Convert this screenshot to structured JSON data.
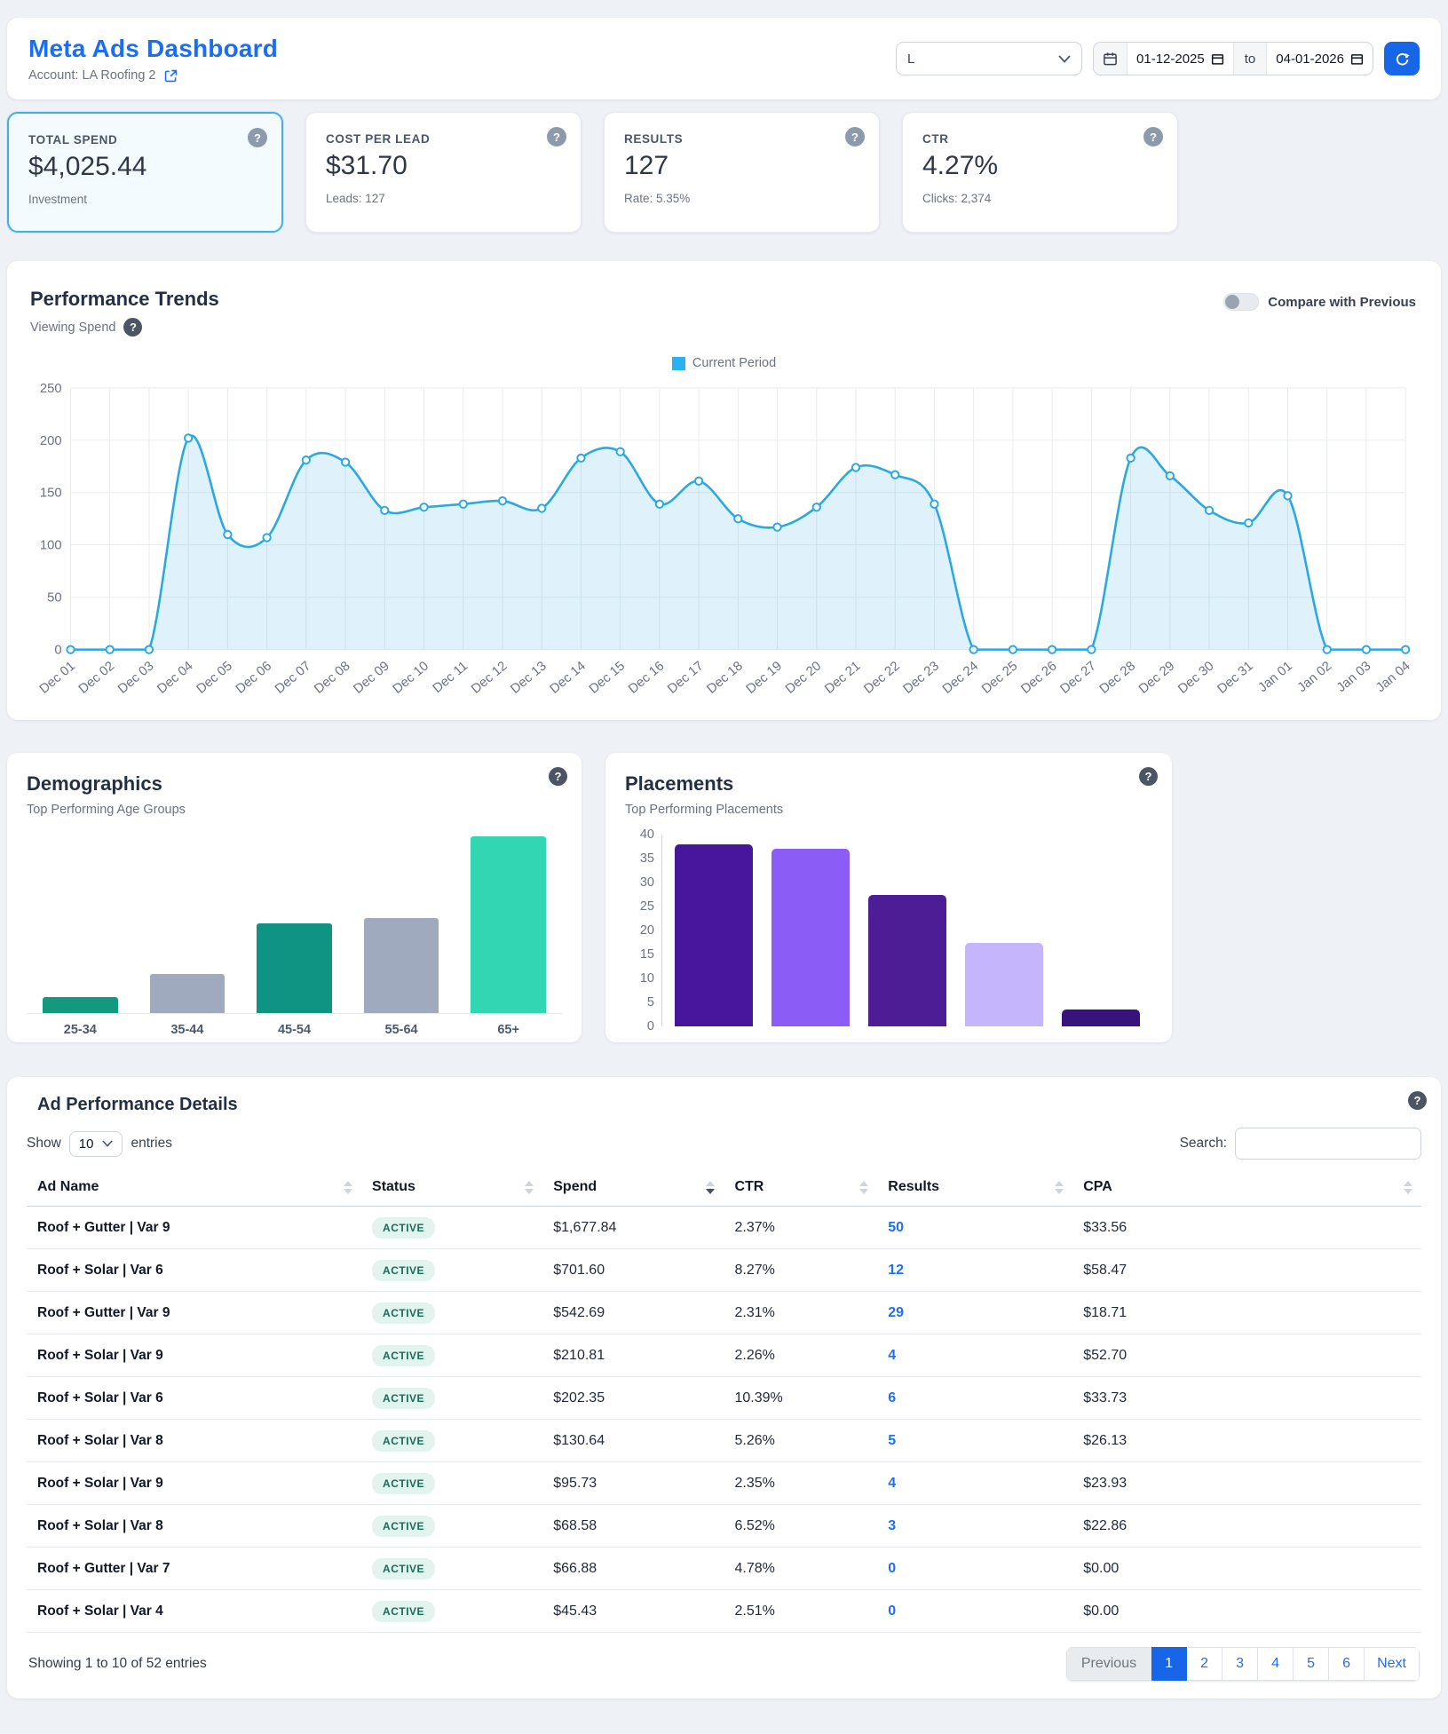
{
  "header": {
    "title": "Meta Ads Dashboard",
    "account_label": "Account: LA Roofing 2",
    "dropdown_value": "L",
    "date_from": "01-12-2025",
    "to_label": "to",
    "date_to": "04-01-2026"
  },
  "kpis": [
    {
      "label": "TOTAL SPEND",
      "value": "$4,025.44",
      "sub": "Investment"
    },
    {
      "label": "COST PER LEAD",
      "value": "$31.70",
      "sub": "Leads: 127"
    },
    {
      "label": "RESULTS",
      "value": "127",
      "sub": "Rate: 5.35%"
    },
    {
      "label": "CTR",
      "value": "4.27%",
      "sub": "Clicks: 2,374"
    }
  ],
  "trends": {
    "title": "Performance Trends",
    "subtitle": "Viewing Spend",
    "toggle_label": "Compare with Previous",
    "legend": "Current Period"
  },
  "demographics": {
    "title": "Demographics",
    "subtitle": "Top Performing Age Groups"
  },
  "placements": {
    "title": "Placements",
    "subtitle": "Top Performing Placements"
  },
  "chart_data": [
    {
      "type": "line",
      "title": "Performance Trends",
      "subtitle": "Viewing Spend",
      "legend": [
        "Current Period"
      ],
      "legend_position": "top",
      "grid": true,
      "x": [
        "Dec 01",
        "Dec 02",
        "Dec 03",
        "Dec 04",
        "Dec 05",
        "Dec 06",
        "Dec 07",
        "Dec 08",
        "Dec 09",
        "Dec 10",
        "Dec 11",
        "Dec 12",
        "Dec 13",
        "Dec 14",
        "Dec 15",
        "Dec 16",
        "Dec 17",
        "Dec 18",
        "Dec 19",
        "Dec 20",
        "Dec 21",
        "Dec 22",
        "Dec 23",
        "Dec 24",
        "Dec 25",
        "Dec 26",
        "Dec 27",
        "Dec 28",
        "Dec 29",
        "Dec 30",
        "Dec 31",
        "Jan 01",
        "Jan 02",
        "Jan 03",
        "Jan 04"
      ],
      "series": [
        {
          "name": "Current Period",
          "values": [
            0,
            0,
            0,
            202,
            110,
            107,
            181,
            179,
            133,
            136,
            139,
            142,
            135,
            183,
            189,
            139,
            161,
            125,
            117,
            136,
            174,
            167,
            139,
            0,
            0,
            0,
            0,
            183,
            166,
            133,
            121,
            147,
            0,
            0,
            0
          ]
        }
      ],
      "ylim": [
        0,
        250
      ],
      "yticks": [
        0,
        50,
        100,
        150,
        200,
        250
      ],
      "line_color": "#2aa8e2",
      "fill_color": "rgba(42,168,226,0.15)"
    },
    {
      "type": "bar",
      "title": "Demographics",
      "subtitle": "Top Performing Age Groups",
      "categories": [
        "25-34",
        "35-44",
        "45-54",
        "55-64",
        "65+"
      ],
      "values": [
        9,
        22,
        51,
        54,
        100
      ],
      "value_unit": "relative-height-percent-of-max",
      "colors": [
        "#12997e",
        "#a0aabf",
        "#0f9382",
        "#a0aabf",
        "#32d6b2"
      ],
      "yaxis_visible": false
    },
    {
      "type": "bar",
      "title": "Placements",
      "subtitle": "Top Performing Placements",
      "categories": [
        "",
        "",
        "",
        "",
        ""
      ],
      "values": [
        38,
        37,
        27.5,
        17.5,
        3.5
      ],
      "ylim": [
        0,
        40
      ],
      "yticks": [
        0,
        5,
        10,
        15,
        20,
        25,
        30,
        35,
        40
      ],
      "colors": [
        "#46179b",
        "#8b5cf6",
        "#4c1d95",
        "#c4b5fd",
        "#38127d"
      ],
      "x_labels_visible": false
    }
  ],
  "table": {
    "title": "Ad Performance Details",
    "show_label": "Show",
    "page_size": "10",
    "entries_label": "entries",
    "search_label": "Search:",
    "columns": [
      "Ad Name",
      "Status",
      "Spend",
      "CTR",
      "Results",
      "CPA"
    ],
    "sorted_column": "Spend",
    "sorted_direction": "desc",
    "rows": [
      {
        "ad_name": "Roof + Gutter | Var 9",
        "status": "ACTIVE",
        "spend": "$1,677.84",
        "ctr": "2.37%",
        "results": "50",
        "cpa": "$33.56"
      },
      {
        "ad_name": "Roof + Solar | Var 6",
        "status": "ACTIVE",
        "spend": "$701.60",
        "ctr": "8.27%",
        "results": "12",
        "cpa": "$58.47"
      },
      {
        "ad_name": "Roof + Gutter | Var 9",
        "status": "ACTIVE",
        "spend": "$542.69",
        "ctr": "2.31%",
        "results": "29",
        "cpa": "$18.71"
      },
      {
        "ad_name": "Roof + Solar | Var 9",
        "status": "ACTIVE",
        "spend": "$210.81",
        "ctr": "2.26%",
        "results": "4",
        "cpa": "$52.70"
      },
      {
        "ad_name": "Roof + Solar | Var 6",
        "status": "ACTIVE",
        "spend": "$202.35",
        "ctr": "10.39%",
        "results": "6",
        "cpa": "$33.73"
      },
      {
        "ad_name": "Roof + Solar | Var 8",
        "status": "ACTIVE",
        "spend": "$130.64",
        "ctr": "5.26%",
        "results": "5",
        "cpa": "$26.13"
      },
      {
        "ad_name": "Roof + Solar | Var 9",
        "status": "ACTIVE",
        "spend": "$95.73",
        "ctr": "2.35%",
        "results": "4",
        "cpa": "$23.93"
      },
      {
        "ad_name": "Roof + Solar | Var 8",
        "status": "ACTIVE",
        "spend": "$68.58",
        "ctr": "6.52%",
        "results": "3",
        "cpa": "$22.86"
      },
      {
        "ad_name": "Roof + Gutter | Var 7",
        "status": "ACTIVE",
        "spend": "$66.88",
        "ctr": "4.78%",
        "results": "0",
        "cpa": "$0.00"
      },
      {
        "ad_name": "Roof + Solar | Var 4",
        "status": "ACTIVE",
        "spend": "$45.43",
        "ctr": "2.51%",
        "results": "0",
        "cpa": "$0.00"
      }
    ],
    "footer_text": "Showing 1 to 10 of 52 entries",
    "pagination": {
      "previous": "Previous",
      "pages": [
        "1",
        "2",
        "3",
        "4",
        "5",
        "6"
      ],
      "active_page": "1",
      "next": "Next"
    }
  },
  "colors": {
    "accent_blue": "#1a6ef5",
    "refresh_button": "#1766e8",
    "trend_line": "#2aa8e2",
    "legend_swatch": "#29b2ef",
    "active_badge_bg": "#e3f4ee",
    "active_badge_text": "#176b57",
    "results_link": "#1f6ff2",
    "pagination_active": "#1766e8",
    "kpi_selected_border": "#41b0e8"
  }
}
